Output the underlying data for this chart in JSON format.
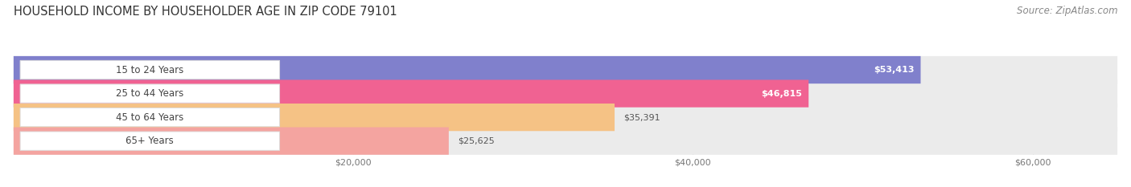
{
  "title": "HOUSEHOLD INCOME BY HOUSEHOLDER AGE IN ZIP CODE 79101",
  "source": "Source: ZipAtlas.com",
  "categories": [
    "15 to 24 Years",
    "25 to 44 Years",
    "45 to 64 Years",
    "65+ Years"
  ],
  "values": [
    53413,
    46815,
    35391,
    25625
  ],
  "bar_colors": [
    "#8080cc",
    "#f06292",
    "#f5c285",
    "#f4a4a0"
  ],
  "bar_bg_color": "#ebebeb",
  "value_labels": [
    "$53,413",
    "$46,815",
    "$35,391",
    "$25,625"
  ],
  "value_inside": [
    true,
    true,
    false,
    false
  ],
  "xmax": 65000,
  "xticks": [
    20000,
    40000,
    60000
  ],
  "xtick_labels": [
    "$20,000",
    "$40,000",
    "$60,000"
  ],
  "title_fontsize": 10.5,
  "source_fontsize": 8.5,
  "bar_label_fontsize": 8.5,
  "value_label_fontsize": 8.0,
  "tick_fontsize": 8,
  "background_color": "#ffffff"
}
